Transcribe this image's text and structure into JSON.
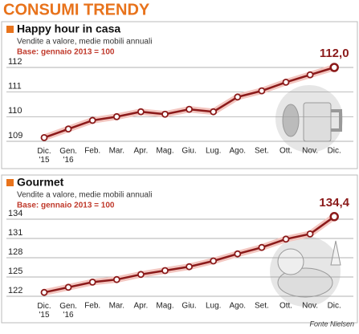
{
  "header": {
    "title": "CONSUMI TRENDY"
  },
  "chart_data": [
    {
      "type": "line",
      "title": "Happy hour in casa",
      "subtitle": "Vendite a valore, medie mobili annuali",
      "note": "Base: gennaio 2013 = 100",
      "categories": [
        "Dic.\n'15",
        "Gen.\n'16",
        "Feb.",
        "Mar.",
        "Apr.",
        "Mag.",
        "Giu.",
        "Lug.",
        "Ago.",
        "Set.",
        "Ott.",
        "Nov.",
        "Dic."
      ],
      "values": [
        109.15,
        109.5,
        109.85,
        110.0,
        110.2,
        110.1,
        110.3,
        110.2,
        110.8,
        111.05,
        111.4,
        111.7,
        112.0
      ],
      "value_labels": [
        null,
        null,
        null,
        null,
        null,
        null,
        null,
        null,
        null,
        null,
        null,
        null,
        "112,0"
      ],
      "color": "#8b1a1a",
      "ylim": [
        109,
        112
      ],
      "yticks": [
        109,
        110,
        111,
        112
      ],
      "grid": true
    },
    {
      "type": "line",
      "title": "Gourmet",
      "subtitle": "Vendite a valore, medie mobili annuali",
      "note": "Base: gennaio 2013 = 100",
      "categories": [
        "Dic.\n'15",
        "Gen.\n'16",
        "Feb.",
        "Mar.",
        "Apr.",
        "Mag.",
        "Giu.",
        "Lug.",
        "Ago.",
        "Set.",
        "Ott.",
        "Nov.",
        "Dic."
      ],
      "values": [
        122.6,
        123.4,
        124.2,
        124.6,
        125.4,
        126.0,
        126.6,
        127.5,
        128.6,
        129.6,
        130.9,
        131.7,
        134.4
      ],
      "value_labels": [
        null,
        null,
        null,
        null,
        null,
        null,
        null,
        null,
        null,
        null,
        null,
        null,
        "134,4"
      ],
      "color": "#8b1a1a",
      "ylim": [
        122,
        134
      ],
      "yticks": [
        122,
        125,
        128,
        131,
        134
      ],
      "grid": true
    }
  ],
  "source": "Fonte Nielsen"
}
